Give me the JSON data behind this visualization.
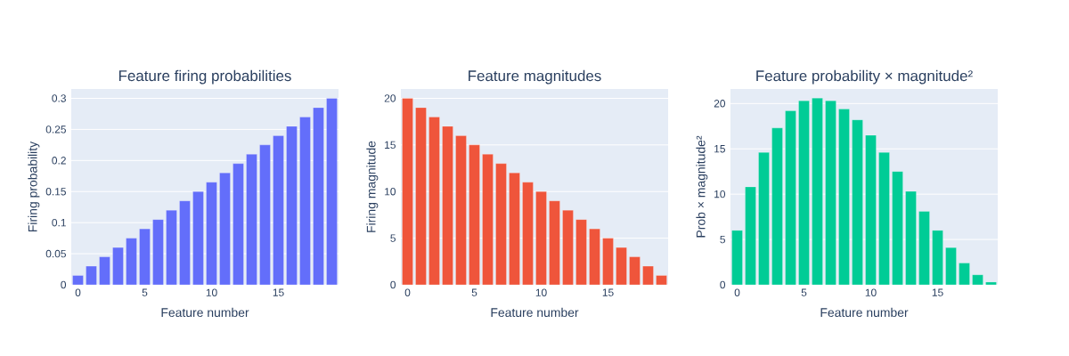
{
  "chart_data": [
    {
      "type": "bar",
      "title": "Feature firing probabilities",
      "xlabel": "Feature number",
      "ylabel": "Firing probability",
      "x": [
        0,
        1,
        2,
        3,
        4,
        5,
        6,
        7,
        8,
        9,
        10,
        11,
        12,
        13,
        14,
        15,
        16,
        17,
        18,
        19
      ],
      "values": [
        0.015,
        0.03,
        0.045,
        0.06,
        0.075,
        0.09,
        0.105,
        0.12,
        0.135,
        0.15,
        0.165,
        0.18,
        0.195,
        0.21,
        0.225,
        0.24,
        0.255,
        0.27,
        0.285,
        0.3
      ],
      "color": "#636efa",
      "xlim": [
        -0.5,
        19.5
      ],
      "ylim": [
        0,
        0.315
      ],
      "xticks": [
        0,
        5,
        10,
        15
      ],
      "yticks": [
        0,
        0.05,
        0.1,
        0.15,
        0.2,
        0.25,
        0.3
      ],
      "grid": "y"
    },
    {
      "type": "bar",
      "title": "Feature magnitudes",
      "xlabel": "Feature number",
      "ylabel": "Firing magnitude",
      "x": [
        0,
        1,
        2,
        3,
        4,
        5,
        6,
        7,
        8,
        9,
        10,
        11,
        12,
        13,
        14,
        15,
        16,
        17,
        18,
        19
      ],
      "values": [
        20,
        19,
        18,
        17,
        16,
        15,
        14,
        13,
        12,
        11,
        10,
        9,
        8,
        7,
        6,
        5,
        4,
        3,
        2,
        1
      ],
      "color": "#ef553b",
      "xlim": [
        -0.5,
        19.5
      ],
      "ylim": [
        0,
        21
      ],
      "xticks": [
        0,
        5,
        10,
        15
      ],
      "yticks": [
        0,
        5,
        10,
        15,
        20
      ],
      "grid": "y"
    },
    {
      "type": "bar",
      "title": "Feature probability × magnitude²",
      "xlabel": "Feature number",
      "ylabel": "Prob × magnitude²",
      "x": [
        0,
        1,
        2,
        3,
        4,
        5,
        6,
        7,
        8,
        9,
        10,
        11,
        12,
        13,
        14,
        15,
        16,
        17,
        18,
        19
      ],
      "values": [
        6,
        10.8,
        14.6,
        17.3,
        19.2,
        20.3,
        20.6,
        20.3,
        19.4,
        18.2,
        16.5,
        14.6,
        12.5,
        10.3,
        8.1,
        6,
        4.1,
        2.4,
        1.1,
        0.3
      ],
      "color": "#00cc96",
      "xlim": [
        -0.5,
        19.5
      ],
      "ylim": [
        0,
        21.6
      ],
      "xticks": [
        0,
        5,
        10,
        15
      ],
      "yticks": [
        0,
        5,
        10,
        15,
        20
      ],
      "grid": "y"
    }
  ]
}
